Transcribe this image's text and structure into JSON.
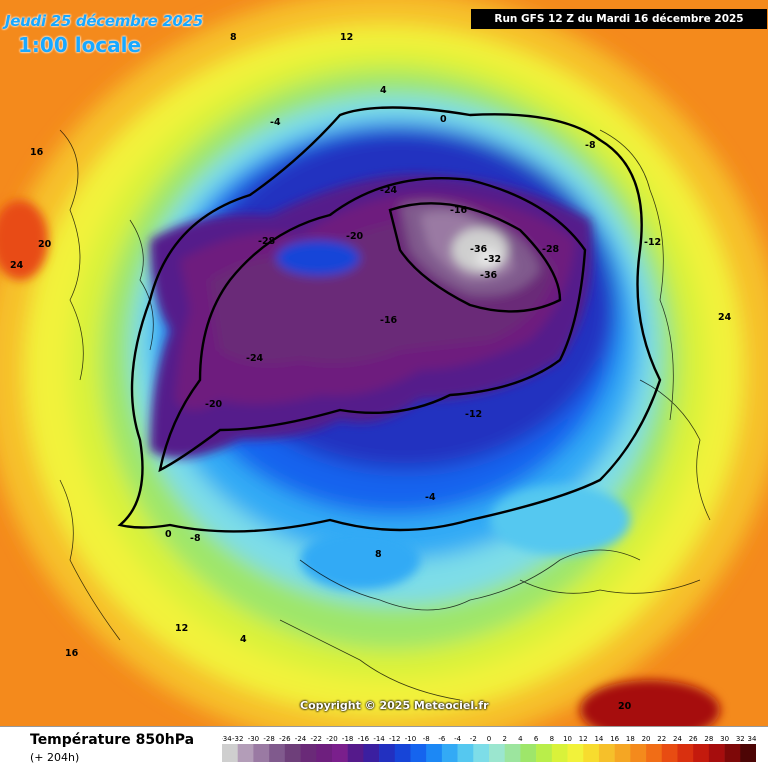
{
  "header": {
    "date": "Jeudi 25 décembre 2025",
    "local_time": "1:00 locale",
    "run_info": "Run GFS 12 Z du Mardi 16 décembre 2025"
  },
  "footer": {
    "variable": "Température 850hPa",
    "lead_time": "(+ 204h)",
    "copyright": "Copyright © 2025 Meteociel.fr"
  },
  "legend": {
    "unit_values": [
      -34,
      -32,
      -30,
      -28,
      -26,
      -24,
      -22,
      -20,
      -18,
      -16,
      -14,
      -12,
      -10,
      -8,
      -6,
      -4,
      -2,
      0,
      2,
      4,
      6,
      8,
      10,
      12,
      14,
      16,
      18,
      20,
      22,
      24,
      26,
      28,
      30,
      32,
      34
    ],
    "colors": [
      "#cfcfcf",
      "#b39db8",
      "#9a7aa3",
      "#805a8d",
      "#6e3f7a",
      "#6a2a78",
      "#6e1f7e",
      "#7a1f8c",
      "#551a8b",
      "#3b1fa0",
      "#2230c0",
      "#1745d8",
      "#1564ee",
      "#1c88f5",
      "#33aaf5",
      "#55c8f0",
      "#7ddde8",
      "#9be6cf",
      "#9ce59e",
      "#9ee66a",
      "#b9ee4a",
      "#d9f23a",
      "#f2f23a",
      "#f7dc2e",
      "#f6c02a",
      "#f5a623",
      "#f48a1c",
      "#f16d16",
      "#e84c12",
      "#d9300f",
      "#c41a0d",
      "#a60d0d",
      "#7e0808",
      "#4d0505"
    ]
  },
  "isotherm_labels": [
    "-24",
    "-20",
    "-28",
    "-16",
    "-12",
    "-8",
    "-4",
    "0",
    "4",
    "8",
    "12",
    "16",
    "20",
    "24",
    "-32",
    "-36",
    "-36",
    "-28",
    "-24",
    "-20",
    "-16",
    "-12",
    "-8",
    "-4",
    "0",
    "4",
    "8",
    "12",
    "16",
    "20",
    "24"
  ]
}
